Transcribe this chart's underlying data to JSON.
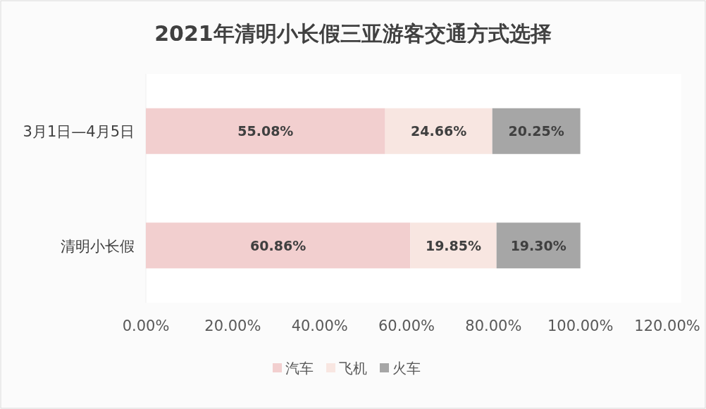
{
  "chart_data": {
    "type": "bar",
    "orientation": "horizontal",
    "stacked": true,
    "title": "2021年清明小长假三亚游客交通方式选择",
    "categories": [
      "3月1日—4月5日",
      "清明小长假"
    ],
    "series": [
      {
        "name": "汽车",
        "color": "#f2cfcf",
        "values": [
          55.08,
          60.86
        ],
        "value_labels": [
          "55.08%",
          "60.86%"
        ]
      },
      {
        "name": "飞机",
        "color": "#f8e6e1",
        "values": [
          24.66,
          19.85
        ],
        "value_labels": [
          "24.66%",
          "19.85%"
        ]
      },
      {
        "name": "火车",
        "color": "#a6a6a6",
        "values": [
          20.25,
          19.3
        ],
        "value_labels": [
          "20.25%",
          "19.30%"
        ]
      }
    ],
    "xlim": [
      0,
      120
    ],
    "xticks": [
      {
        "value": 0,
        "label": "0.00%"
      },
      {
        "value": 20,
        "label": "20.00%"
      },
      {
        "value": 40,
        "label": "40.00%"
      },
      {
        "value": 60,
        "label": "60.00%"
      },
      {
        "value": 80,
        "label": "80.00%"
      },
      {
        "value": 100,
        "label": "100.00%"
      },
      {
        "value": 120,
        "label": "120.00%"
      }
    ],
    "legend": "bottom"
  }
}
